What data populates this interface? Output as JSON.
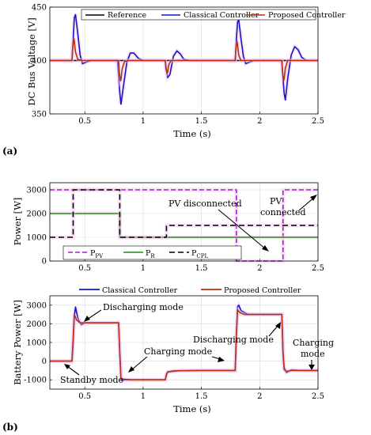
{
  "panel_labels": {
    "a": "(a)",
    "b": "(b)"
  },
  "chart_data": [
    {
      "type": "line",
      "id": "voltage",
      "xlabel": "Time (s)",
      "ylabel": "DC Bus Voltage [V]",
      "xlim": [
        0.2,
        2.5
      ],
      "ylim": [
        350,
        450
      ],
      "xticks": [
        0.5,
        1,
        1.5,
        2,
        2.5
      ],
      "yticks": [
        350,
        400,
        450
      ],
      "grid": true,
      "legend": "top-right",
      "series": [
        {
          "name": "Reference",
          "color": "#000000",
          "x": [
            0.2,
            2.5
          ],
          "y": [
            400,
            400
          ]
        },
        {
          "name": "Classical Controller",
          "color": "#1414c8",
          "x": [
            0.2,
            0.39,
            0.4,
            0.41,
            0.42,
            0.44,
            0.46,
            0.48,
            0.5,
            0.55,
            0.6,
            0.78,
            0.79,
            0.8,
            0.81,
            0.83,
            0.86,
            0.89,
            0.92,
            0.96,
            1.0,
            1.05,
            1.19,
            1.2,
            1.21,
            1.23,
            1.26,
            1.29,
            1.32,
            1.35,
            1.4,
            1.79,
            1.8,
            1.81,
            1.82,
            1.84,
            1.86,
            1.88,
            1.9,
            1.95,
            2.0,
            2.19,
            2.2,
            2.21,
            2.22,
            2.24,
            2.27,
            2.3,
            2.33,
            2.36,
            2.4,
            2.5
          ],
          "y": [
            400,
            400,
            420,
            440,
            443,
            425,
            405,
            397,
            398,
            400,
            400,
            400,
            385,
            370,
            359,
            375,
            398,
            407,
            407,
            402,
            400,
            400,
            400,
            392,
            384,
            387,
            404,
            409,
            406,
            401,
            400,
            400,
            420,
            436,
            438,
            420,
            404,
            397,
            398,
            400,
            400,
            400,
            383,
            369,
            363,
            383,
            405,
            413,
            410,
            403,
            400,
            400
          ]
        },
        {
          "name": "Proposed Controller",
          "color": "#b43214",
          "x": [
            0.2,
            0.39,
            0.395,
            0.405,
            0.41,
            0.42,
            0.44,
            0.48,
            0.6,
            0.79,
            0.795,
            0.805,
            0.81,
            0.82,
            0.84,
            0.88,
            1.0,
            1.19,
            1.195,
            1.205,
            1.21,
            1.22,
            1.24,
            1.28,
            1.4,
            1.79,
            1.795,
            1.805,
            1.81,
            1.82,
            1.84,
            1.88,
            2.0,
            2.19,
            2.195,
            2.205,
            2.21,
            2.22,
            2.24,
            2.28,
            2.5
          ],
          "y": [
            400,
            400,
            410,
            421,
            418,
            408,
            401,
            400,
            400,
            400,
            390,
            381,
            382,
            392,
            399,
            400,
            400,
            400,
            393,
            388,
            389,
            396,
            400,
            400,
            400,
            400,
            410,
            418,
            415,
            405,
            400,
            400,
            400,
            400,
            390,
            381,
            383,
            393,
            400,
            400,
            400
          ]
        }
      ]
    },
    {
      "type": "line",
      "id": "power",
      "xlabel": "",
      "ylabel": "Power [W]",
      "xlim": [
        0.2,
        2.5
      ],
      "ylim": [
        0,
        3300
      ],
      "xticks": [
        0.5,
        1,
        1.5,
        2,
        2.5
      ],
      "yticks": [
        0,
        1000,
        2000,
        3000
      ],
      "grid": true,
      "legend": "bottom-left",
      "annotations": [
        "PV disconnected",
        "PV connected"
      ],
      "series": [
        {
          "name": "P",
          "sub": "PV",
          "color": "#a020d8",
          "dash": "6,3",
          "x": [
            0.2,
            1.8,
            1.8,
            2.2,
            2.2,
            2.5
          ],
          "y": [
            3000,
            3000,
            0,
            0,
            3000,
            3000
          ]
        },
        {
          "name": "P",
          "sub": "R",
          "color": "#2a8a1e",
          "dash": "",
          "x": [
            0.2,
            0.8,
            0.8,
            2.5
          ],
          "y": [
            2000,
            2000,
            1000,
            1000
          ]
        },
        {
          "name": "P",
          "sub": "CPL",
          "color": "#000000",
          "dash": "7,4",
          "x": [
            0.2,
            0.4,
            0.4,
            0.8,
            0.8,
            1.2,
            1.2,
            2.5
          ],
          "y": [
            1000,
            1000,
            3000,
            3000,
            1000,
            1000,
            1500,
            1500
          ]
        }
      ]
    },
    {
      "type": "line",
      "id": "battery",
      "xlabel": "Time (s)",
      "ylabel": "Battery Power [W]",
      "xlim": [
        0.2,
        2.5
      ],
      "ylim": [
        -1500,
        3500
      ],
      "xticks": [
        0.5,
        1,
        1.5,
        2,
        2.5
      ],
      "yticks": [
        -1000,
        0,
        1000,
        2000,
        3000
      ],
      "grid": true,
      "legend": "top",
      "annotations": [
        "Discharging mode",
        "Standby mode",
        "Charging mode",
        "Discharging mode",
        "Charging mode"
      ],
      "series": [
        {
          "name": "Classical Controller",
          "color": "#1414c8",
          "x": [
            0.2,
            0.39,
            0.4,
            0.41,
            0.42,
            0.44,
            0.47,
            0.5,
            0.6,
            0.79,
            0.8,
            0.81,
            0.82,
            0.84,
            0.88,
            0.95,
            1.19,
            1.2,
            1.21,
            1.24,
            1.3,
            1.5,
            1.79,
            1.8,
            1.81,
            1.82,
            1.84,
            1.9,
            2.0,
            2.19,
            2.2,
            2.21,
            2.23,
            2.27,
            2.35,
            2.5
          ],
          "y": [
            0,
            0,
            1000,
            2400,
            2900,
            2300,
            1950,
            2050,
            2050,
            2050,
            500,
            -950,
            -1050,
            -1000,
            -1000,
            -1000,
            -1000,
            -750,
            -600,
            -560,
            -520,
            -500,
            -500,
            1500,
            2900,
            3000,
            2700,
            2500,
            2500,
            2500,
            500,
            -350,
            -620,
            -470,
            -500,
            -500
          ]
        },
        {
          "name": "Proposed Controller",
          "color": "#b43214",
          "x": [
            0.2,
            0.39,
            0.4,
            0.41,
            0.43,
            0.46,
            0.5,
            0.6,
            0.79,
            0.8,
            0.81,
            0.82,
            0.85,
            0.9,
            1.19,
            1.2,
            1.21,
            1.25,
            1.3,
            1.5,
            1.79,
            1.8,
            1.81,
            1.83,
            1.87,
            2.0,
            2.19,
            2.2,
            2.21,
            2.23,
            2.27,
            2.5
          ],
          "y": [
            0,
            0,
            1200,
            2500,
            2200,
            2050,
            2050,
            2050,
            2050,
            400,
            -900,
            -950,
            -980,
            -1000,
            -1000,
            -700,
            -580,
            -530,
            -510,
            -500,
            -500,
            1400,
            2750,
            2600,
            2500,
            2500,
            2500,
            400,
            -450,
            -550,
            -500,
            -500
          ]
        }
      ]
    }
  ]
}
